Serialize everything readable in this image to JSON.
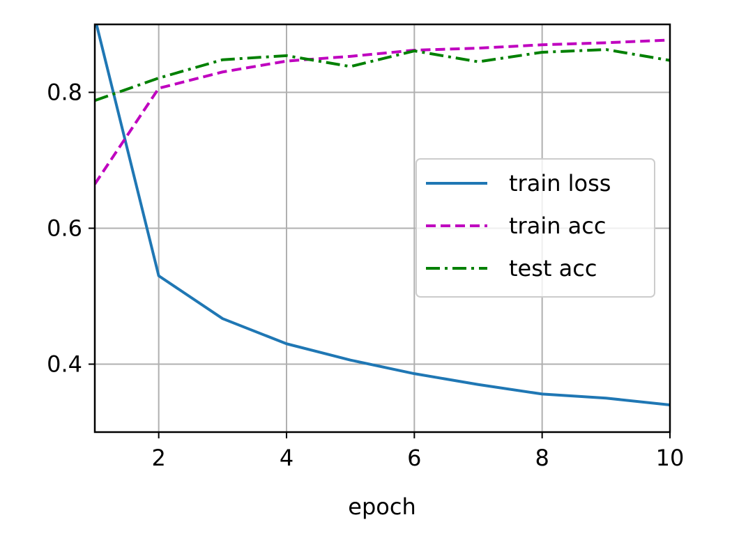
{
  "chart_data": {
    "type": "line",
    "title": "",
    "xlabel": "epoch",
    "ylabel": "",
    "xlim": [
      1,
      10
    ],
    "ylim": [
      0.3,
      0.9
    ],
    "xticks": [
      2,
      4,
      6,
      8,
      10
    ],
    "yticks": [
      0.4,
      0.6,
      0.8
    ],
    "grid": true,
    "legend_position": "center-right",
    "x": [
      1,
      2,
      3,
      4,
      5,
      6,
      7,
      8,
      9,
      10
    ],
    "series": [
      {
        "name": "train loss",
        "color": "#1f77b4",
        "style": "solid",
        "values": [
          0.91,
          0.53,
          0.467,
          0.43,
          0.406,
          0.386,
          0.37,
          0.356,
          0.35,
          0.34
        ]
      },
      {
        "name": "train acc",
        "color": "#bf00bf",
        "style": "dashed",
        "values": [
          0.665,
          0.806,
          0.83,
          0.846,
          0.853,
          0.862,
          0.865,
          0.87,
          0.873,
          0.877
        ]
      },
      {
        "name": "test acc",
        "color": "#008000",
        "style": "dashdot",
        "values": [
          0.788,
          0.821,
          0.848,
          0.854,
          0.838,
          0.861,
          0.845,
          0.859,
          0.863,
          0.847
        ]
      }
    ]
  }
}
